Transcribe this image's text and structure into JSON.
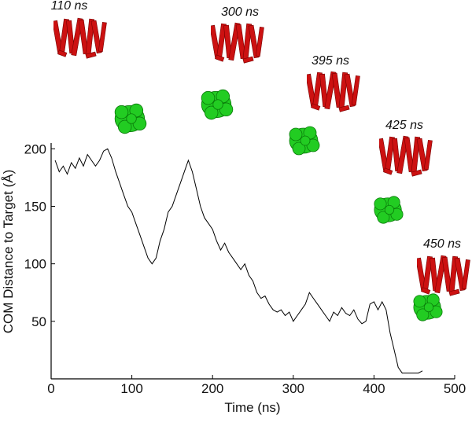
{
  "chart_data": {
    "type": "line",
    "x_label": "Time (ns)",
    "y_label": "COM Distance to Target (Å)",
    "annotations": [
      "110 ns",
      "300 ns",
      "395 ns",
      "425 ns",
      "450 ns"
    ],
    "x": [
      5,
      10,
      15,
      20,
      25,
      30,
      35,
      40,
      45,
      50,
      55,
      60,
      65,
      70,
      75,
      80,
      85,
      90,
      95,
      100,
      105,
      110,
      115,
      120,
      125,
      130,
      135,
      140,
      145,
      150,
      155,
      160,
      165,
      170,
      175,
      180,
      185,
      190,
      195,
      200,
      205,
      210,
      215,
      220,
      225,
      230,
      235,
      240,
      245,
      250,
      255,
      260,
      265,
      270,
      275,
      280,
      285,
      290,
      295,
      300,
      305,
      310,
      315,
      320,
      325,
      330,
      335,
      340,
      345,
      350,
      355,
      360,
      365,
      370,
      375,
      380,
      385,
      390,
      395,
      400,
      405,
      410,
      415,
      420,
      425,
      430,
      435,
      440,
      445,
      450,
      455,
      460
    ],
    "values": [
      190,
      180,
      185,
      178,
      188,
      183,
      192,
      185,
      195,
      190,
      185,
      190,
      198,
      200,
      192,
      180,
      170,
      160,
      150,
      145,
      135,
      125,
      115,
      105,
      100,
      105,
      120,
      130,
      145,
      150,
      160,
      170,
      180,
      190,
      180,
      165,
      150,
      140,
      135,
      130,
      120,
      112,
      118,
      110,
      105,
      100,
      95,
      100,
      90,
      85,
      75,
      70,
      72,
      65,
      60,
      58,
      60,
      55,
      58,
      50,
      55,
      60,
      65,
      75,
      70,
      65,
      60,
      55,
      50,
      58,
      55,
      62,
      57,
      55,
      60,
      52,
      48,
      50,
      65,
      67,
      60,
      67,
      60,
      40,
      25,
      10,
      5,
      5,
      5,
      5,
      5,
      7
    ],
    "color": "#000000",
    "xlim": [
      0,
      500
    ],
    "xticks": [
      0,
      100,
      200,
      300,
      400,
      500
    ],
    "ylim": [
      0,
      205
    ],
    "yticks": [
      50,
      100,
      150,
      200
    ]
  }
}
